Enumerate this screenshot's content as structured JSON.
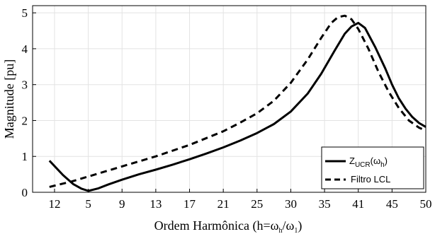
{
  "chart_data": {
    "type": "line",
    "xlabel": "Ordem Harmônica (h=ω",
    "xlabel_sub1": "h",
    "xlabel_mid": "/ω",
    "xlabel_sub2": "1",
    "xlabel_end": ")",
    "ylabel": "Magnitude [pu]",
    "ylim": [
      0,
      5.2
    ],
    "yticks": [
      0,
      1,
      2,
      3,
      4,
      5
    ],
    "xticks": [
      {
        "pos": 0.0,
        "label": "12"
      },
      {
        "pos": 1.0,
        "label": "5"
      },
      {
        "pos": 2.0,
        "label": "9"
      },
      {
        "pos": 3.0,
        "label": "13"
      },
      {
        "pos": 4.0,
        "label": "17"
      },
      {
        "pos": 5.0,
        "label": "21"
      },
      {
        "pos": 6.0,
        "label": "25"
      },
      {
        "pos": 7.0,
        "label": "30"
      },
      {
        "pos": 8.0,
        "label": "35"
      },
      {
        "pos": 9.0,
        "label": "41"
      },
      {
        "pos": 10.0,
        "label": "45"
      },
      {
        "pos": 11.0,
        "label": "50"
      }
    ],
    "xlim": [
      -0.65,
      11.0
    ],
    "grid": true,
    "legend_position": "bottom-right",
    "series": [
      {
        "name": "Z_UCR(ω_h)",
        "legend_main": "Z",
        "legend_sub": "UCR",
        "legend_rest": "(ω",
        "legend_sub2": "h",
        "legend_end": ")",
        "style": "solid",
        "x": [
          -0.15,
          0.25,
          0.55,
          0.8,
          1.0,
          1.3,
          1.6,
          2.0,
          2.5,
          3.0,
          3.5,
          4.0,
          4.5,
          5.0,
          5.5,
          6.0,
          6.5,
          7.0,
          7.5,
          7.9,
          8.3,
          8.6,
          8.8,
          9.0,
          9.2,
          9.5,
          9.8,
          10.0,
          10.2,
          10.4,
          10.6,
          10.8,
          11.0
        ],
        "y": [
          0.88,
          0.48,
          0.23,
          0.1,
          0.04,
          0.11,
          0.22,
          0.35,
          0.5,
          0.63,
          0.77,
          0.92,
          1.08,
          1.25,
          1.44,
          1.65,
          1.9,
          2.25,
          2.75,
          3.3,
          3.95,
          4.42,
          4.62,
          4.72,
          4.58,
          4.05,
          3.45,
          3.0,
          2.62,
          2.33,
          2.1,
          1.93,
          1.82
        ]
      },
      {
        "name": "Filtro LCL",
        "style": "dashed",
        "x": [
          -0.15,
          0.5,
          1.0,
          2.0,
          3.0,
          4.0,
          5.0,
          5.5,
          6.0,
          6.5,
          7.0,
          7.5,
          7.9,
          8.2,
          8.4,
          8.6,
          8.8,
          9.0,
          9.3,
          9.6,
          9.9,
          10.2,
          10.5,
          10.8,
          11.0
        ],
        "y": [
          0.15,
          0.3,
          0.44,
          0.72,
          1.0,
          1.32,
          1.7,
          1.94,
          2.2,
          2.55,
          3.05,
          3.7,
          4.3,
          4.72,
          4.88,
          4.92,
          4.82,
          4.55,
          4.0,
          3.35,
          2.8,
          2.35,
          2.0,
          1.8,
          1.72
        ]
      }
    ]
  }
}
